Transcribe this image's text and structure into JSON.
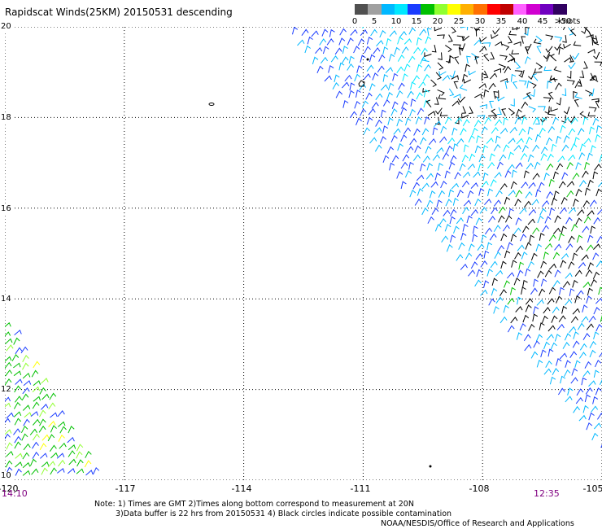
{
  "title": "Rapidscat Winds(25KM) 20150531 descending",
  "legend": {
    "ticks": [
      "0",
      "5",
      "10",
      "15",
      "20",
      "25",
      "30",
      "35",
      "40",
      "45",
      ">50"
    ],
    "units": "knots",
    "colors": [
      "#505050",
      "#a0a0a0",
      "#00b8ff",
      "#00e8ff",
      "#1a3cff",
      "#00c000",
      "#90ff30",
      "#ffff00",
      "#ffb000",
      "#ff7000",
      "#ff0000",
      "#c00000",
      "#ff60ff",
      "#d000d0",
      "#7000c0",
      "#300060"
    ]
  },
  "map": {
    "lat_labels": [
      "20",
      "18",
      "16",
      "14",
      "12",
      "10"
    ],
    "lon_labels": [
      "-120",
      "-117",
      "-114",
      "-111",
      "-108",
      "-105"
    ],
    "lat_range": [
      10,
      20
    ],
    "lon_range": [
      -120,
      -105
    ],
    "gridlines": "dotted",
    "time_start": "14:10",
    "time_end": "12:35",
    "wind_speed_color_bins_knots": [
      0,
      5,
      10,
      15,
      20,
      25,
      30,
      35,
      40,
      45,
      50
    ]
  },
  "notes": {
    "line1": "Note: 1) Times are GMT 2)Times along bottom correspond to measurement at 20N",
    "line2": "3)Data buffer is 22 hrs from 20150531 4) Black circles indicate possible contamination"
  },
  "credit": "NOAA/NESDIS/Office of Research and Applications"
}
